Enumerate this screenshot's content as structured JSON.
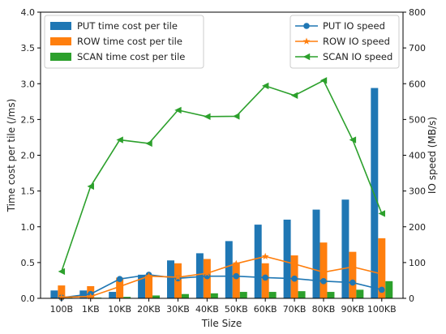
{
  "chart_data": {
    "type": "bar",
    "categories": [
      "100B",
      "1KB",
      "10KB",
      "20KB",
      "30KB",
      "40KB",
      "50KB",
      "60KB",
      "70KB",
      "80KB",
      "90KB",
      "100KB"
    ],
    "xlabel": "Tile Size",
    "ylabel": "Time cost per tile (/ms)",
    "y2label": "IO speed (MB/s)",
    "ylim": [
      0,
      4.0
    ],
    "y2lim": [
      0,
      800
    ],
    "yticks": [
      "0.0",
      "0.5",
      "1.0",
      "1.5",
      "2.0",
      "2.5",
      "3.0",
      "3.5",
      "4.0"
    ],
    "y2ticks": [
      "0",
      "100",
      "200",
      "300",
      "400",
      "500",
      "600",
      "700",
      "800"
    ],
    "grid": false,
    "bar_series": [
      {
        "name": "PUT time cost per tile",
        "color": "#1f77b4",
        "values": [
          0.11,
          0.11,
          0.09,
          0.33,
          0.53,
          0.63,
          0.8,
          1.03,
          1.1,
          1.24,
          1.38,
          2.94
        ]
      },
      {
        "name": "ROW time cost per tile",
        "color": "#ff7f0e",
        "values": [
          0.18,
          0.17,
          0.29,
          0.32,
          0.49,
          0.55,
          0.49,
          0.49,
          0.6,
          0.78,
          0.65,
          0.84
        ]
      },
      {
        "name": "SCAN time cost per tile",
        "color": "#2ca02c",
        "values": [
          0.01,
          0.01,
          0.02,
          0.04,
          0.06,
          0.07,
          0.09,
          0.09,
          0.1,
          0.09,
          0.12,
          0.24
        ]
      }
    ],
    "line_series": [
      {
        "name": "PUT IO speed",
        "color": "#1f77b4",
        "marker": "circle",
        "values": [
          2,
          12,
          54,
          66,
          56,
          62,
          62,
          58,
          55,
          48,
          44,
          24
        ]
      },
      {
        "name": "ROW IO speed",
        "color": "#ff7f0e",
        "marker": "star",
        "values": [
          3,
          5,
          33,
          62,
          59,
          70,
          97,
          117,
          96,
          73,
          88,
          68
        ]
      },
      {
        "name": "SCAN IO speed",
        "color": "#2ca02c",
        "marker": "triangle-left",
        "values": [
          75,
          313,
          443,
          433,
          526,
          508,
          509,
          594,
          567,
          609,
          443,
          237
        ]
      }
    ],
    "legend_left": "upper-left",
    "legend_right": "upper-right"
  }
}
